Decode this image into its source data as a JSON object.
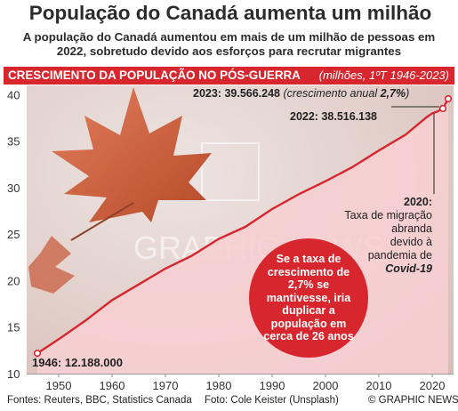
{
  "title": "População do Canadá aumenta um milhão",
  "subtitle": "A população do Canadá aumentou em mais de um milhão de pessoas em 2022, sobretudo devido aos esforços para recrutar migrantes",
  "banner": {
    "main": "CRESCIMENTO DA POPULAÇÃO NO PÓS-GUERRA",
    "note": "(milhões, 1ºT 1946-2023)"
  },
  "annotations": {
    "y2023_label": "2023: 39.566.248",
    "y2023_growth_prefix": "(crescimento anual ",
    "y2023_growth_value": "2,7%",
    "y2023_growth_suffix": ")",
    "y2022": "2022: 38.516.138",
    "y1946": "1946: 12.188.000",
    "note2020_year": "2020:",
    "note2020_l1": "Taxa de migração",
    "note2020_l2": "abranda",
    "note2020_l3": "devido à",
    "note2020_l4": "pandemia de",
    "note2020_l5": "Covid-19",
    "circle_text": "Se a taxa de crescimento de 2,7% se mantivesse, iria duplicar a população em cerca de 26 anos"
  },
  "watermark": "GRAPHIC NEWS",
  "footer": {
    "sources": "Fontes: Reuters, BBC, Statistics Canada",
    "photo": "Foto: Cole Keister (Unsplash)",
    "credit": "© GRAPHIC NEWS"
  },
  "colors": {
    "accent": "#d7262e",
    "fill": "#f7cfd1",
    "text": "#222222"
  },
  "chart_data": {
    "type": "area",
    "xlim": [
      1944,
      2024
    ],
    "ylim": [
      10,
      41
    ],
    "yticks": [
      10,
      15,
      20,
      25,
      30,
      35,
      40
    ],
    "xticks": [
      1950,
      1960,
      1970,
      1980,
      1990,
      2000,
      2010,
      2020
    ],
    "x": [
      1946,
      1950,
      1955,
      1960,
      1965,
      1970,
      1975,
      1980,
      1985,
      1990,
      1995,
      2000,
      2005,
      2010,
      2015,
      2019,
      2020,
      2021,
      2022,
      2023
    ],
    "values": [
      12.188,
      13.7,
      15.7,
      17.9,
      19.6,
      21.3,
      22.7,
      24.5,
      25.8,
      27.7,
      29.3,
      30.7,
      32.2,
      34.0,
      35.7,
      37.6,
      38.0,
      38.2,
      38.516,
      39.566
    ],
    "highlight": [
      {
        "x": 1946,
        "y": 12.188
      },
      {
        "x": 2022,
        "y": 38.516
      },
      {
        "x": 2023,
        "y": 39.566
      }
    ],
    "grid": false
  }
}
